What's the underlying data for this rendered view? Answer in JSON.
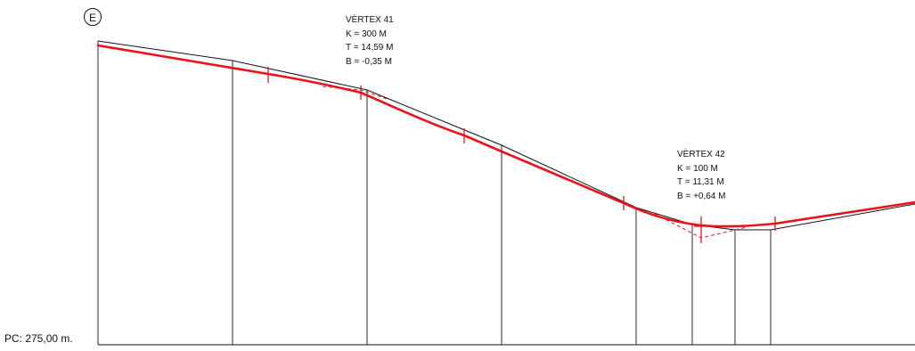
{
  "marker": "E",
  "datum_label": "PC: 275,00 m.",
  "vertices": [
    {
      "name": "VÈRTEX 41",
      "k": "K = 300 M",
      "t": "T = 14,59 M",
      "b": "B = -0,35 M"
    },
    {
      "name": "VÈRTEX 42",
      "k": "K = 100 M",
      "t": "T = 11,31 M",
      "b": "B = +0,64 M"
    }
  ],
  "colors": {
    "grade_line": "#e8141b",
    "terrain_line": "#111111"
  }
}
